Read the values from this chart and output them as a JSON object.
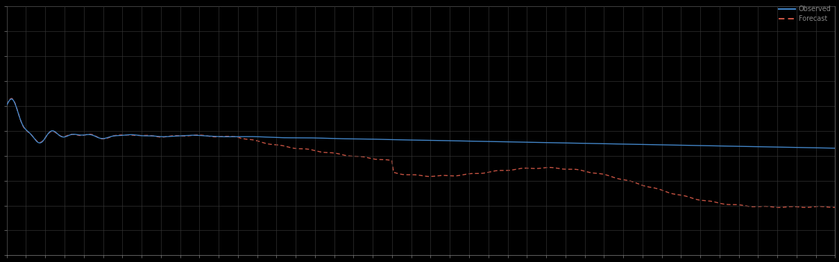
{
  "background_color": "#000000",
  "plot_bg_color": "#000000",
  "grid_color": "#333333",
  "text_color": "#888888",
  "line1_color": "#4488cc",
  "line1_label": "Observed",
  "line2_color": "#cc5544",
  "line2_label": "Forecast",
  "xlim": [
    0,
    43
  ],
  "ylim": [
    0,
    10
  ],
  "n_xgrid": 43,
  "n_ygrid": 10,
  "figsize": [
    12.09,
    3.78
  ],
  "dpi": 100,
  "legend_fontsize": 7
}
